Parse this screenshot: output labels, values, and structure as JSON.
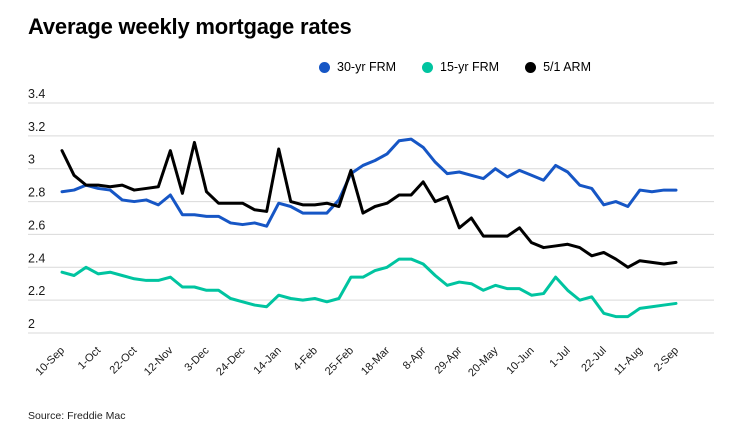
{
  "title": "Average weekly mortgage rates",
  "source": "Source: Freddie Mac",
  "legend": [
    {
      "label": "30-yr FRM",
      "color": "#1656c5"
    },
    {
      "label": "15-yr FRM",
      "color": "#00c4a0"
    },
    {
      "label": "5/1 ARM",
      "color": "#000000"
    }
  ],
  "colors": {
    "grid": "#d9d9d9",
    "axis_text": "#1a1a1a"
  },
  "chart_data": {
    "type": "line",
    "title": "Average weekly mortgage rates",
    "xlabel": "",
    "ylabel": "",
    "ylim": [
      2,
      3.4
    ],
    "yticks": [
      2,
      2.2,
      2.4,
      2.6,
      2.8,
      3,
      3.2,
      3.4
    ],
    "grid": true,
    "legend_position": "top",
    "x_tick_labels": [
      "10-Sep",
      "1-Oct",
      "22-Oct",
      "12-Nov",
      "3-Dec",
      "24-Dec",
      "14-Jan",
      "4-Feb",
      "25-Feb",
      "18-Mar",
      "8-Apr",
      "29-Apr",
      "20-May",
      "10-Jun",
      "1-Jul",
      "22-Jul",
      "11-Aug",
      "2-Sep"
    ],
    "label_every": 3,
    "series": [
      {
        "name": "30-yr FRM",
        "color": "#1656c5",
        "values": [
          2.86,
          2.87,
          2.9,
          2.88,
          2.87,
          2.81,
          2.8,
          2.81,
          2.78,
          2.84,
          2.72,
          2.72,
          2.71,
          2.71,
          2.67,
          2.66,
          2.67,
          2.65,
          2.79,
          2.77,
          2.73,
          2.73,
          2.73,
          2.81,
          2.97,
          3.02,
          3.05,
          3.09,
          3.17,
          3.18,
          3.13,
          3.04,
          2.97,
          2.98,
          2.96,
          2.94,
          3.0,
          2.95,
          2.99,
          2.96,
          2.93,
          3.02,
          2.98,
          2.9,
          2.88,
          2.78,
          2.8,
          2.77,
          2.87,
          2.86,
          2.87,
          2.87
        ]
      },
      {
        "name": "15-yr FRM",
        "color": "#00c4a0",
        "values": [
          2.37,
          2.35,
          2.4,
          2.36,
          2.37,
          2.35,
          2.33,
          2.32,
          2.32,
          2.34,
          2.28,
          2.28,
          2.26,
          2.26,
          2.21,
          2.19,
          2.17,
          2.16,
          2.23,
          2.21,
          2.2,
          2.21,
          2.19,
          2.21,
          2.34,
          2.34,
          2.38,
          2.4,
          2.45,
          2.45,
          2.42,
          2.35,
          2.29,
          2.31,
          2.3,
          2.26,
          2.29,
          2.27,
          2.27,
          2.23,
          2.24,
          2.34,
          2.26,
          2.2,
          2.22,
          2.12,
          2.1,
          2.1,
          2.15,
          2.16,
          2.17,
          2.18
        ]
      },
      {
        "name": "5/1 ARM",
        "color": "#000000",
        "values": [
          3.11,
          2.96,
          2.9,
          2.9,
          2.89,
          2.9,
          2.87,
          2.88,
          2.89,
          3.11,
          2.85,
          3.16,
          2.86,
          2.79,
          2.79,
          2.79,
          2.75,
          2.74,
          3.12,
          2.8,
          2.78,
          2.78,
          2.79,
          2.77,
          2.99,
          2.73,
          2.77,
          2.79,
          2.84,
          2.84,
          2.92,
          2.8,
          2.83,
          2.64,
          2.7,
          2.59,
          2.59,
          2.59,
          2.64,
          2.55,
          2.52,
          2.53,
          2.54,
          2.52,
          2.47,
          2.49,
          2.45,
          2.4,
          2.44,
          2.43,
          2.42,
          2.43
        ]
      }
    ]
  }
}
